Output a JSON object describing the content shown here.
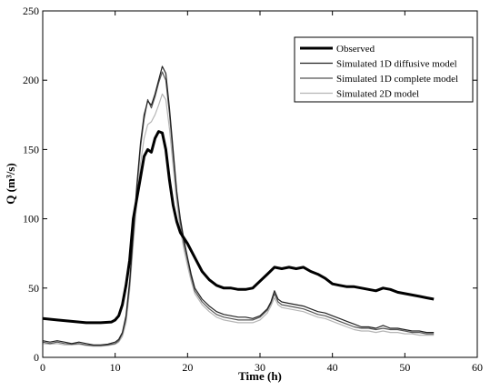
{
  "chart_data": {
    "type": "line",
    "title": "",
    "xlabel": "Time (h)",
    "ylabel": "Q (m³/s)",
    "xlim": [
      0,
      60
    ],
    "ylim": [
      0,
      250
    ],
    "xticks": [
      0,
      10,
      20,
      30,
      40,
      50,
      60
    ],
    "yticks": [
      0,
      50,
      100,
      150,
      200,
      250
    ],
    "grid": false,
    "legend_position": "top-right",
    "series": [
      {
        "name": "Observed",
        "color": "#000000",
        "width": 3,
        "points": [
          [
            0,
            28
          ],
          [
            2,
            27
          ],
          [
            4,
            26
          ],
          [
            6,
            25
          ],
          [
            8,
            25
          ],
          [
            9.5,
            25.5
          ],
          [
            10,
            27
          ],
          [
            10.5,
            30
          ],
          [
            11,
            38
          ],
          [
            11.5,
            52
          ],
          [
            12,
            70
          ],
          [
            12.5,
            100
          ],
          [
            13,
            115
          ],
          [
            13.5,
            130
          ],
          [
            14,
            145
          ],
          [
            14.5,
            150
          ],
          [
            15,
            148
          ],
          [
            15.5,
            158
          ],
          [
            16,
            163
          ],
          [
            16.5,
            162
          ],
          [
            17,
            150
          ],
          [
            17.5,
            128
          ],
          [
            18,
            110
          ],
          [
            18.5,
            98
          ],
          [
            19,
            90
          ],
          [
            20,
            82
          ],
          [
            21,
            72
          ],
          [
            22,
            62
          ],
          [
            23,
            56
          ],
          [
            24,
            52
          ],
          [
            25,
            50
          ],
          [
            26,
            50
          ],
          [
            27,
            49
          ],
          [
            28,
            49
          ],
          [
            29,
            50
          ],
          [
            30,
            55
          ],
          [
            31,
            60
          ],
          [
            32,
            65
          ],
          [
            33,
            64
          ],
          [
            34,
            65
          ],
          [
            35,
            64
          ],
          [
            36,
            65
          ],
          [
            37,
            62
          ],
          [
            38,
            60
          ],
          [
            39,
            57
          ],
          [
            40,
            53
          ],
          [
            41,
            52
          ],
          [
            42,
            51
          ],
          [
            43,
            51
          ],
          [
            44,
            50
          ],
          [
            45,
            49
          ],
          [
            46,
            48
          ],
          [
            47,
            50
          ],
          [
            48,
            49
          ],
          [
            49,
            47
          ],
          [
            50,
            46
          ],
          [
            51,
            45
          ],
          [
            52,
            44
          ],
          [
            53,
            43
          ],
          [
            54,
            42
          ]
        ]
      },
      {
        "name": "Simulated 1D diffusive model",
        "color": "#222222",
        "width": 1.2,
        "points": [
          [
            0,
            12
          ],
          [
            1,
            11
          ],
          [
            2,
            12
          ],
          [
            3,
            11
          ],
          [
            4,
            10
          ],
          [
            5,
            11
          ],
          [
            6,
            10
          ],
          [
            7,
            9
          ],
          [
            8,
            9
          ],
          [
            9,
            9.5
          ],
          [
            10,
            11
          ],
          [
            10.5,
            13
          ],
          [
            11,
            18
          ],
          [
            11.5,
            30
          ],
          [
            12,
            55
          ],
          [
            12.5,
            90
          ],
          [
            13,
            125
          ],
          [
            13.5,
            155
          ],
          [
            14,
            175
          ],
          [
            14.5,
            185
          ],
          [
            15,
            182
          ],
          [
            15.5,
            190
          ],
          [
            16,
            200
          ],
          [
            16.5,
            210
          ],
          [
            17,
            205
          ],
          [
            17.5,
            180
          ],
          [
            18,
            150
          ],
          [
            18.5,
            120
          ],
          [
            19,
            100
          ],
          [
            19.5,
            85
          ],
          [
            20,
            72
          ],
          [
            20.5,
            60
          ],
          [
            21,
            50
          ],
          [
            22,
            42
          ],
          [
            23,
            37
          ],
          [
            24,
            33
          ],
          [
            25,
            31
          ],
          [
            26,
            30
          ],
          [
            27,
            29
          ],
          [
            28,
            29
          ],
          [
            29,
            28
          ],
          [
            30,
            30
          ],
          [
            31,
            35
          ],
          [
            31.5,
            40
          ],
          [
            32,
            48
          ],
          [
            32.5,
            42
          ],
          [
            33,
            40
          ],
          [
            34,
            39
          ],
          [
            35,
            38
          ],
          [
            36,
            37
          ],
          [
            37,
            35
          ],
          [
            38,
            33
          ],
          [
            39,
            32
          ],
          [
            40,
            30
          ],
          [
            41,
            28
          ],
          [
            42,
            26
          ],
          [
            43,
            24
          ],
          [
            44,
            22
          ],
          [
            45,
            22
          ],
          [
            46,
            21
          ],
          [
            47,
            23
          ],
          [
            48,
            21
          ],
          [
            49,
            21
          ],
          [
            50,
            20
          ],
          [
            51,
            19
          ],
          [
            52,
            19
          ],
          [
            53,
            18
          ],
          [
            54,
            18
          ]
        ]
      },
      {
        "name": "Simulated 1D complete model",
        "color": "#555555",
        "width": 1.2,
        "points": [
          [
            0,
            11
          ],
          [
            1,
            10
          ],
          [
            2,
            11
          ],
          [
            3,
            10
          ],
          [
            4,
            9.5
          ],
          [
            5,
            10
          ],
          [
            6,
            9
          ],
          [
            7,
            8.5
          ],
          [
            8,
            8.5
          ],
          [
            9,
            9
          ],
          [
            10,
            10
          ],
          [
            10.5,
            12
          ],
          [
            11,
            17
          ],
          [
            11.5,
            28
          ],
          [
            12,
            52
          ],
          [
            12.5,
            88
          ],
          [
            13,
            122
          ],
          [
            13.5,
            152
          ],
          [
            14,
            172
          ],
          [
            14.5,
            186
          ],
          [
            15,
            180
          ],
          [
            15.5,
            188
          ],
          [
            16,
            198
          ],
          [
            16.5,
            206
          ],
          [
            17,
            200
          ],
          [
            17.5,
            176
          ],
          [
            18,
            146
          ],
          [
            18.5,
            118
          ],
          [
            19,
            97
          ],
          [
            19.5,
            82
          ],
          [
            20,
            70
          ],
          [
            20.5,
            58
          ],
          [
            21,
            48
          ],
          [
            22,
            40
          ],
          [
            23,
            35
          ],
          [
            24,
            31
          ],
          [
            25,
            29
          ],
          [
            26,
            28
          ],
          [
            27,
            27
          ],
          [
            28,
            27
          ],
          [
            29,
            27
          ],
          [
            30,
            29
          ],
          [
            31,
            34
          ],
          [
            31.5,
            39
          ],
          [
            32,
            46
          ],
          [
            32.5,
            40
          ],
          [
            33,
            38
          ],
          [
            34,
            37
          ],
          [
            35,
            36
          ],
          [
            36,
            35
          ],
          [
            37,
            33
          ],
          [
            38,
            31
          ],
          [
            39,
            30
          ],
          [
            40,
            28
          ],
          [
            41,
            26
          ],
          [
            42,
            24
          ],
          [
            43,
            22
          ],
          [
            44,
            21
          ],
          [
            45,
            21
          ],
          [
            46,
            20
          ],
          [
            47,
            21
          ],
          [
            48,
            20
          ],
          [
            49,
            20
          ],
          [
            50,
            19
          ],
          [
            51,
            18
          ],
          [
            52,
            18
          ],
          [
            53,
            17
          ],
          [
            54,
            17
          ]
        ]
      },
      {
        "name": "Simulated 2D model",
        "color": "#b5b5b5",
        "width": 1.2,
        "points": [
          [
            0,
            10
          ],
          [
            1,
            9.5
          ],
          [
            2,
            10
          ],
          [
            3,
            9
          ],
          [
            4,
            9
          ],
          [
            5,
            9.5
          ],
          [
            6,
            8.5
          ],
          [
            7,
            8
          ],
          [
            8,
            8
          ],
          [
            9,
            8.5
          ],
          [
            10,
            9.5
          ],
          [
            10.5,
            11
          ],
          [
            11,
            15
          ],
          [
            11.5,
            25
          ],
          [
            12,
            48
          ],
          [
            12.5,
            82
          ],
          [
            13,
            112
          ],
          [
            13.5,
            140
          ],
          [
            14,
            158
          ],
          [
            14.5,
            168
          ],
          [
            15,
            170
          ],
          [
            15.5,
            175
          ],
          [
            16,
            182
          ],
          [
            16.5,
            190
          ],
          [
            17,
            186
          ],
          [
            17.5,
            165
          ],
          [
            18,
            138
          ],
          [
            18.5,
            112
          ],
          [
            19,
            92
          ],
          [
            19.5,
            78
          ],
          [
            20,
            66
          ],
          [
            20.5,
            55
          ],
          [
            21,
            46
          ],
          [
            22,
            38
          ],
          [
            23,
            33
          ],
          [
            24,
            29
          ],
          [
            25,
            27
          ],
          [
            26,
            26
          ],
          [
            27,
            25
          ],
          [
            28,
            25
          ],
          [
            29,
            25
          ],
          [
            30,
            27
          ],
          [
            31,
            32
          ],
          [
            31.5,
            37
          ],
          [
            32,
            43
          ],
          [
            32.5,
            38
          ],
          [
            33,
            36
          ],
          [
            34,
            35
          ],
          [
            35,
            34
          ],
          [
            36,
            33
          ],
          [
            37,
            31
          ],
          [
            38,
            29
          ],
          [
            39,
            28
          ],
          [
            40,
            26
          ],
          [
            41,
            24
          ],
          [
            42,
            22
          ],
          [
            43,
            20
          ],
          [
            44,
            19
          ],
          [
            45,
            19
          ],
          [
            46,
            18
          ],
          [
            47,
            19
          ],
          [
            48,
            18
          ],
          [
            49,
            18
          ],
          [
            50,
            17
          ],
          [
            51,
            17
          ],
          [
            52,
            16
          ],
          [
            53,
            16
          ],
          [
            54,
            16
          ]
        ]
      }
    ]
  }
}
